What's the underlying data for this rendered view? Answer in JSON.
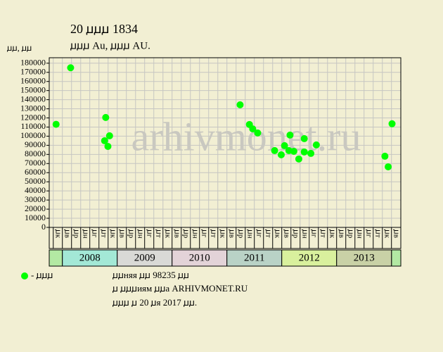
{
  "chart_data": {
    "type": "scatter",
    "title": "20 ꙡꙡꙡ 1834",
    "subtitle": "ꙡꙡꙡ Au, ꙡꙡꙡ AU.",
    "y_label": "ꙡꙡ, ꙡꙡ",
    "watermark": "arhivmonet.ru",
    "x": [
      2007.885,
      2008.15,
      2008.79,
      2008.77,
      2008.86,
      2008.83,
      2011.24,
      2011.41,
      2011.47,
      2011.56,
      2011.87,
      2011.99,
      2012.05,
      2012.15,
      2012.13,
      2012.22,
      2012.31,
      2012.41,
      2012.41,
      2012.53,
      2012.63,
      2013.88,
      2013.94,
      2014.01
    ],
    "series": [
      {
        "name": "- ꙡꙡꙡ",
        "color": "#00ff00",
        "values": [
          113000,
          175000,
          120500,
          95000,
          100400,
          88800,
          134400,
          112800,
          108000,
          103500,
          84200,
          79600,
          89600,
          101200,
          84200,
          83400,
          75000,
          97300,
          82700,
          81100,
          90400,
          78000,
          66400,
          113600
        ]
      }
    ],
    "xlim": [
      2007.76,
      2014.17
    ],
    "ylim": [
      0,
      186000
    ],
    "yticks": [
      0,
      10000,
      20000,
      30000,
      40000,
      50000,
      60000,
      70000,
      80000,
      90000,
      100000,
      110000,
      120000,
      130000,
      140000,
      150000,
      160000,
      170000,
      180000
    ],
    "xticks": [
      {
        "value": 2007.917,
        "label": "ꙡк"
      },
      {
        "value": 2008.083,
        "label": "ꙡв"
      },
      {
        "value": 2008.25,
        "label": "ꙡр"
      },
      {
        "value": 2008.417,
        "label": "ꙡн"
      },
      {
        "value": 2008.583,
        "label": "ꙡг"
      },
      {
        "value": 2008.75,
        "label": "ꙡт"
      },
      {
        "value": 2008.917,
        "label": "ꙡк"
      },
      {
        "value": 2009.083,
        "label": "ꙡв"
      },
      {
        "value": 2009.25,
        "label": "ꙡр"
      },
      {
        "value": 2009.417,
        "label": "ꙡн"
      },
      {
        "value": 2009.583,
        "label": "ꙡг"
      },
      {
        "value": 2009.75,
        "label": "ꙡт"
      },
      {
        "value": 2009.917,
        "label": "ꙡк"
      },
      {
        "value": 2010.083,
        "label": "ꙡв"
      },
      {
        "value": 2010.25,
        "label": "ꙡр"
      },
      {
        "value": 2010.417,
        "label": "ꙡн"
      },
      {
        "value": 2010.583,
        "label": "ꙡг"
      },
      {
        "value": 2010.75,
        "label": "ꙡт"
      },
      {
        "value": 2010.917,
        "label": "ꙡк"
      },
      {
        "value": 2011.083,
        "label": "ꙡв"
      },
      {
        "value": 2011.25,
        "label": "ꙡр"
      },
      {
        "value": 2011.417,
        "label": "ꙡн"
      },
      {
        "value": 2011.583,
        "label": "ꙡг"
      },
      {
        "value": 2011.75,
        "label": "ꙡт"
      },
      {
        "value": 2011.917,
        "label": "ꙡк"
      },
      {
        "value": 2012.083,
        "label": "ꙡв"
      },
      {
        "value": 2012.25,
        "label": "ꙡр"
      },
      {
        "value": 2012.417,
        "label": "ꙡн"
      },
      {
        "value": 2012.583,
        "label": "ꙡг"
      },
      {
        "value": 2012.75,
        "label": "ꙡт"
      },
      {
        "value": 2012.917,
        "label": "ꙡк"
      },
      {
        "value": 2013.083,
        "label": "ꙡв"
      },
      {
        "value": 2013.25,
        "label": "ꙡр"
      },
      {
        "value": 2013.417,
        "label": "ꙡн"
      },
      {
        "value": 2013.583,
        "label": "ꙡг"
      },
      {
        "value": 2013.75,
        "label": "ꙡт"
      },
      {
        "value": 2013.917,
        "label": "ꙡк"
      },
      {
        "value": 2014.083,
        "label": "ꙡв"
      }
    ],
    "year_bands": [
      {
        "label": "2008",
        "start": 2008,
        "end": 2009,
        "color": "#a3e8d6"
      },
      {
        "label": "2009",
        "start": 2009,
        "end": 2010,
        "color": "#d9d9d6"
      },
      {
        "label": "2010",
        "start": 2010,
        "end": 2011,
        "color": "#e3d3d8"
      },
      {
        "label": "2011",
        "start": 2011,
        "end": 2012,
        "color": "#b9d2c6"
      },
      {
        "label": "2012",
        "start": 2012,
        "end": 2013,
        "color": "#d9f09d"
      },
      {
        "label": "2013",
        "start": 2013,
        "end": 2014,
        "color": "#c9d1a6"
      }
    ],
    "edge_color": "#b3e9a3",
    "grid": true,
    "notes": [
      "ꙡꙡняя ꙡꙡ 98235 ꙡꙡ",
      "ꙡ ꙡꙡꙡиям ꙡꙡа ARHIVMONET.RU",
      "ꙡꙡꙡ ꙡ 20 ꙡя 2017 ꙡꙡ."
    ]
  }
}
